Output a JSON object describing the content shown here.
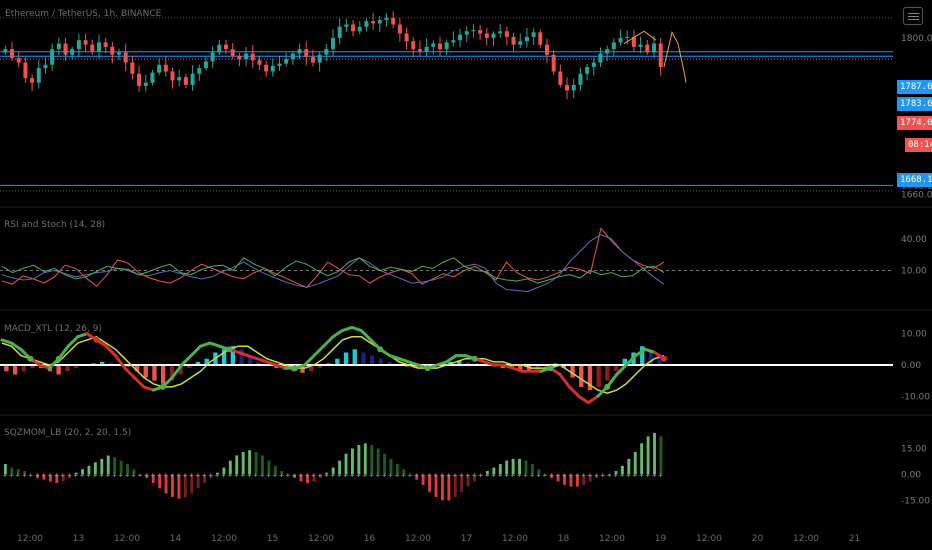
{
  "chart_data": {
    "type": "line",
    "symbol_title": "Ethereum / TetherUS, 1h, BINANCE",
    "price_pane": {
      "right_axis_ticks": [
        {
          "label": "1800.00",
          "value": 1800
        },
        {
          "label": "1668.10",
          "value": 1668.1
        },
        {
          "label": "1660.00",
          "value": 1660
        }
      ],
      "price_labels": [
        {
          "label": "1787.66",
          "value": 1787.66,
          "color": "#2196f3"
        },
        {
          "label": "1783.66",
          "value": 1783.66,
          "color": "#2196f3"
        },
        {
          "label": "1774.06",
          "value": 1774.06,
          "color": "#ef5350"
        },
        {
          "label": "08:14",
          "value": 1765.5,
          "color": "#ef5350"
        },
        {
          "label": "1668.10",
          "value": 1668.1,
          "color": "#2196f3"
        }
      ],
      "horizontal_lines": [
        {
          "value": 1787.66,
          "color": "#2196f3",
          "style": "solid"
        },
        {
          "value": 1783.66,
          "color": "#2196f3",
          "style": "solid"
        },
        {
          "value": 1668.1,
          "color": "#2196f3",
          "style": "solid"
        },
        {
          "value": 1781.0,
          "color": "#ef5350",
          "style": "dotted"
        },
        {
          "value": 1818.0,
          "color": "#555555",
          "style": "dotted"
        },
        {
          "value": 1663.0,
          "color": "#555555",
          "style": "dotted"
        }
      ],
      "range": [
        1655,
        1825
      ],
      "closes": [
        1790,
        1782,
        1778,
        1764,
        1760,
        1773,
        1776,
        1790,
        1795,
        1785,
        1790,
        1798,
        1794,
        1788,
        1796,
        1792,
        1785,
        1787,
        1778,
        1768,
        1757,
        1760,
        1769,
        1776,
        1770,
        1762,
        1765,
        1758,
        1768,
        1773,
        1779,
        1787,
        1794,
        1790,
        1784,
        1781,
        1786,
        1780,
        1776,
        1770,
        1775,
        1777,
        1781,
        1786,
        1790,
        1783,
        1778,
        1785,
        1790,
        1800,
        1810,
        1812,
        1806,
        1810,
        1815,
        1813,
        1816,
        1818,
        1812,
        1804,
        1797,
        1790,
        1788,
        1792,
        1795,
        1790,
        1796,
        1798,
        1803,
        1806,
        1807,
        1804,
        1800,
        1804,
        1806,
        1801,
        1794,
        1797,
        1801,
        1805,
        1794,
        1785,
        1770,
        1758,
        1753,
        1758,
        1768,
        1774,
        1778,
        1786,
        1790,
        1796,
        1800,
        1801,
        1792,
        1794,
        1787,
        1795,
        1774
      ]
    },
    "indicator_panes": [
      {
        "id": "rsi_stoch",
        "title": "RSI and Stoch (14, 28)",
        "ticks": [
          {
            "label": "40.00",
            "value": 40
          },
          {
            "label": "10.00",
            "value": 10
          }
        ],
        "range": [
          -18,
          56
        ],
        "dashed_level": 10,
        "series": [
          {
            "color": "#ef5350",
            "values": [
              0,
              -3,
              5,
              2,
              -2,
              4,
              15,
              12,
              3,
              -5,
              6,
              20,
              17,
              8,
              3,
              0,
              -2,
              3,
              10,
              16,
              12,
              8,
              4,
              2,
              8,
              12,
              7,
              3,
              -2,
              -6,
              5,
              18,
              12,
              6,
              5,
              -2,
              4,
              8,
              11,
              7,
              -3,
              2,
              7,
              4,
              10,
              14,
              8,
              1,
              18,
              8,
              3,
              1,
              4,
              8,
              13,
              11,
              7,
              50,
              38,
              28,
              20,
              15,
              12,
              18
            ]
          },
          {
            "color": "#5c6bc0",
            "values": [
              6,
              3,
              1,
              2,
              8,
              10,
              7,
              4,
              6,
              8,
              9,
              12,
              10,
              6,
              5,
              8,
              10,
              7,
              4,
              2,
              4,
              9,
              13,
              18,
              12,
              7,
              3,
              -1,
              -4,
              -6,
              -3,
              1,
              5,
              14,
              22,
              17,
              10,
              6,
              2,
              -2,
              -1,
              1,
              4,
              10,
              14,
              16,
              12,
              -2,
              -8,
              -9,
              -10,
              -6,
              -2,
              5,
              18,
              28,
              38,
              44,
              40,
              28,
              20,
              12,
              4,
              -3
            ]
          },
          {
            "color": "#4caf50",
            "values": [
              14,
              8,
              12,
              15,
              9,
              12,
              6,
              2,
              4,
              9,
              14,
              12,
              11,
              6,
              9,
              13,
              16,
              8,
              6,
              11,
              14,
              15,
              10,
              22,
              16,
              12,
              5,
              13,
              19,
              16,
              10,
              5,
              9,
              18,
              22,
              14,
              10,
              13,
              11,
              9,
              14,
              12,
              18,
              22,
              14,
              10,
              9,
              3,
              1,
              0,
              2,
              -2,
              1,
              4,
              6,
              3,
              10,
              6,
              8,
              4,
              5,
              12,
              14,
              8
            ]
          }
        ]
      },
      {
        "id": "macd",
        "title": "MACD_XTL (12, 26, 9)",
        "ticks": [
          {
            "label": "10.00",
            "value": 10
          },
          {
            "label": "0.00",
            "value": 0
          },
          {
            "label": "-10.00",
            "value": -10
          }
        ],
        "range": [
          -15,
          15
        ],
        "zero_level": 0,
        "histogram": [
          -2,
          -3,
          -2,
          -1,
          -1,
          -2,
          -3,
          -2,
          -1,
          0,
          0.5,
          1,
          0.8,
          0.3,
          -0.5,
          -2,
          -4,
          -5,
          -6,
          -5,
          -3,
          -1,
          1,
          2,
          4,
          5,
          6,
          5,
          3,
          1,
          0,
          -1,
          -1.5,
          -2,
          -2.5,
          -2,
          -1,
          0.5,
          2,
          4,
          5,
          4,
          3,
          2,
          1,
          0,
          -0.5,
          -1,
          -1,
          -0.5,
          0.5,
          1,
          1.5,
          1,
          0.5,
          0,
          -0.5,
          -1,
          -1,
          -1.5,
          -2,
          -1.5,
          -1,
          0.5,
          -1,
          -4,
          -7,
          -8,
          -7,
          -5,
          -2,
          2,
          4,
          6,
          5,
          3
        ],
        "signal": [
          7,
          6,
          3,
          2,
          1,
          0,
          1,
          4,
          7,
          8,
          9,
          7,
          5,
          2,
          -1,
          -4,
          -6,
          -7,
          -7,
          -6,
          -4,
          -2,
          1,
          3,
          5,
          6,
          6,
          4,
          2,
          1,
          0,
          -1,
          -1,
          0,
          2,
          5,
          8,
          9,
          9,
          7,
          5,
          3,
          1,
          0,
          -1,
          -1,
          -1,
          0,
          1,
          2,
          2,
          2,
          1,
          1,
          0,
          0,
          -1,
          -1,
          -1,
          0,
          -2,
          -4,
          -6,
          -8,
          -9,
          -8,
          -6,
          -3,
          0,
          2,
          3
        ],
        "macd": [
          8,
          7,
          5,
          2,
          0,
          -1,
          2,
          6,
          9,
          10,
          8,
          6,
          3,
          -1,
          -4,
          -7,
          -8,
          -7,
          -4,
          0,
          3,
          6,
          7,
          6,
          5,
          4,
          3,
          2,
          1,
          0,
          -1,
          -1,
          0,
          3,
          6,
          9,
          11,
          12,
          11,
          8,
          5,
          3,
          2,
          1,
          0,
          -1,
          0,
          1,
          3,
          3,
          2,
          1,
          0,
          0,
          -1,
          -2,
          -2,
          -2,
          -1,
          -3,
          -7,
          -10,
          -12,
          -10,
          -7,
          -3,
          0,
          3,
          5,
          4,
          2
        ]
      },
      {
        "id": "squeeze",
        "title": "SQZMOM_LB (20, 2, 20, 1.5)",
        "ticks": [
          {
            "label": "15.00",
            "value": 15
          },
          {
            "label": "0.00",
            "value": 0
          },
          {
            "label": "-15.00",
            "value": -15
          }
        ],
        "range": [
          -24,
          28
        ],
        "histogram": [
          6,
          4,
          3,
          2,
          0,
          -2,
          -3,
          -4,
          -5,
          -4,
          -2,
          1,
          3,
          5,
          7,
          9,
          11,
          10,
          8,
          6,
          3,
          0,
          -2,
          -5,
          -8,
          -11,
          -13,
          -14,
          -13,
          -11,
          -8,
          -5,
          -2,
          1,
          4,
          8,
          11,
          13,
          14,
          13,
          11,
          8,
          5,
          2,
          0,
          -2,
          -4,
          -5,
          -4,
          -2,
          1,
          4,
          8,
          12,
          15,
          17,
          18,
          17,
          15,
          12,
          9,
          6,
          3,
          0,
          -3,
          -6,
          -10,
          -13,
          -15,
          -15,
          -13,
          -10,
          -7,
          -4,
          -1,
          2,
          4,
          6,
          8,
          9,
          9,
          8,
          6,
          3,
          0,
          -2,
          -4,
          -6,
          -7,
          -7,
          -6,
          -4,
          -2,
          -1,
          0,
          2,
          5,
          9,
          13,
          18,
          22,
          24,
          22
        ]
      }
    ],
    "time_axis": {
      "labels": [
        "12:00",
        "13",
        "12:00",
        "14",
        "12:00",
        "15",
        "12:00",
        "16",
        "12:00",
        "17",
        "12:00",
        "18",
        "12:00",
        "19",
        "12:00",
        "20",
        "12:00",
        "21"
      ]
    }
  }
}
